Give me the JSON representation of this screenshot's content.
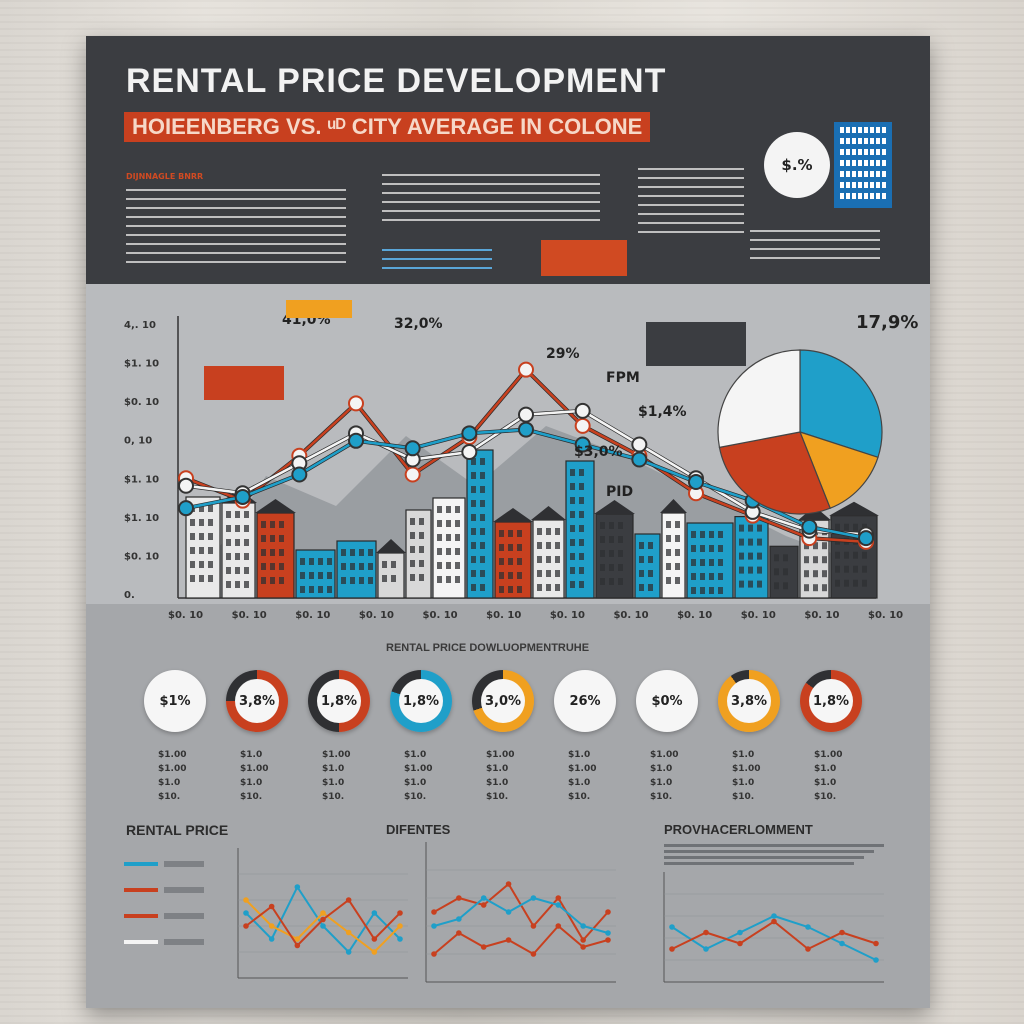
{
  "header": {
    "title": "RENTAL  PRICE DEVELOPMENT",
    "subtitle": "HOIEENBERG VS. ᵘᴰ CITY AVERAGE IN COLONE",
    "section_tag": "DIJNNAGLE BNRR",
    "mini_pie_label": "$.%"
  },
  "main_chart": {
    "y_ticks": [
      "4,. 10",
      "$1. 10",
      "$0. 10",
      "0, 10",
      "$1. 10",
      "$1. 10",
      "$0. 10",
      "0."
    ],
    "x_ticks": [
      "$0. 10",
      "$0. 10",
      "$0. 10",
      "$0. 10",
      "$0. 10",
      "$0. 10",
      "$0. 10",
      "$0. 10",
      "$0. 10",
      "$0. 10",
      "$0. 10",
      "$0. 10"
    ],
    "callouts": [
      "41,0%",
      "32,0%",
      "29%",
      "$1,4%",
      "$3,0%",
      "17,9%",
      "FPM",
      "PID"
    ]
  },
  "chart_data": [
    {
      "type": "line",
      "series": [
        {
          "values": [
            3.2,
            2.6,
            3.8,
            5.2,
            3.3,
            4.3,
            6.1,
            4.6,
            3.8,
            2.8,
            2.2,
            1.6,
            1.5
          ]
        },
        {
          "values": [
            3.0,
            2.8,
            3.6,
            4.4,
            3.7,
            3.9,
            4.9,
            5.0,
            4.1,
            3.2,
            2.3,
            1.8,
            1.7
          ]
        },
        {
          "values": [
            2.4,
            2.7,
            3.3,
            4.2,
            4.0,
            4.4,
            4.5,
            4.1,
            3.7,
            3.1,
            2.6,
            1.9,
            1.6
          ]
        }
      ]
    },
    {
      "type": "pie",
      "label": "17,9%",
      "values": [
        30,
        14,
        28,
        28
      ],
      "colors": [
        "#1f9fc9",
        "#f0a020",
        "#c8401f",
        "#f5f5f5"
      ]
    }
  ],
  "donut_section": {
    "title": "RENTAL PRICE DOWLUOPMENTRUHE",
    "donuts": [
      {
        "label": "$1%",
        "color": "#f6f6f6",
        "fill": 0
      },
      {
        "label": "3,8%",
        "color": "#c8401f",
        "fill": 75
      },
      {
        "label": "1,8%",
        "color": "#c8401f",
        "fill": 50
      },
      {
        "label": "1,8%",
        "color": "#1f9fc9",
        "fill": 80
      },
      {
        "label": "3,0%",
        "color": "#f0a020",
        "fill": 70
      },
      {
        "label": "26%",
        "color": "#f6f6f6",
        "fill": 0
      },
      {
        "label": "$0%",
        "color": "#f6f6f6",
        "fill": 0
      },
      {
        "label": "3,8%",
        "color": "#f0a020",
        "fill": 90
      },
      {
        "label": "1,8%",
        "color": "#c8401f",
        "fill": 85
      }
    ],
    "stats": [
      "$1.00\n$1.00\n$1.0\n$10.",
      "$1.0\n$1.00\n$1.0\n$10.",
      "$1.00\n$1.0\n$1.0\n$10.",
      "$1.0\n$1.00\n$1.0\n$10.",
      "$1.00\n$1.0\n$1.0\n$10.",
      "$1.0\n$1.00\n$1.0\n$10.",
      "$1.00\n$1.0\n$1.0\n$10.",
      "$1.0\n$1.00\n$1.0\n$10.",
      "$1.00\n$1.0\n$1.0\n$10."
    ]
  },
  "bottom": {
    "left_title": "RENTAL PRICE",
    "mid_title": "DIFENTES",
    "right_title": "PROVHACERLOMMENT"
  }
}
